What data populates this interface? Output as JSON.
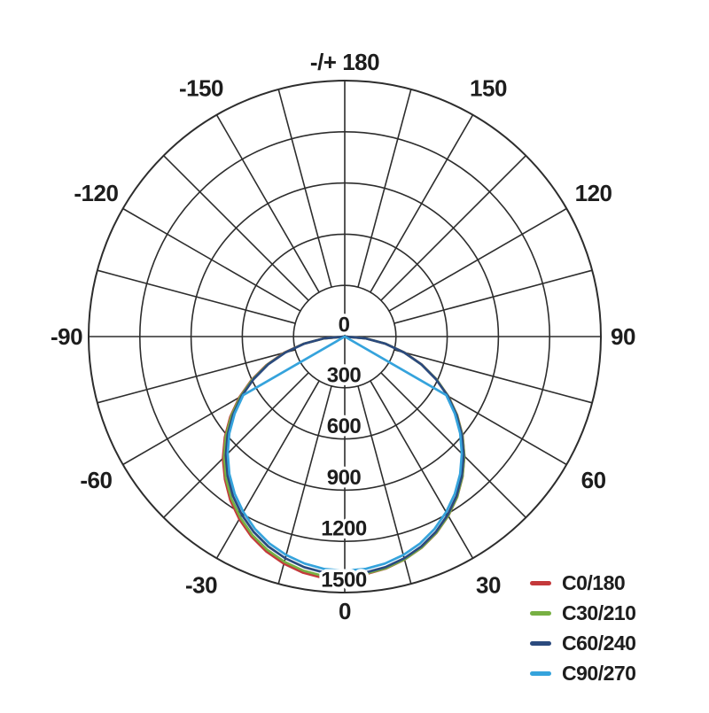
{
  "chart_data": {
    "type": "line",
    "subtype": "polar-photometric-luminous-intensity",
    "title": "",
    "radial_axis": {
      "min": 0,
      "max": 1500,
      "tick_step": 300,
      "tick_labels": [
        "0",
        "300",
        "600",
        "900",
        "1200",
        "1500"
      ],
      "grid": true
    },
    "angular_axis": {
      "grid_step_deg": 15,
      "label_step_deg": 30,
      "zero_direction": "down",
      "labels": [
        {
          "angle": 180,
          "text": "-/+ 180"
        },
        {
          "angle": 150,
          "text": "150"
        },
        {
          "angle": 120,
          "text": "120"
        },
        {
          "angle": 90,
          "text": "90"
        },
        {
          "angle": 60,
          "text": "60"
        },
        {
          "angle": 30,
          "text": "30"
        },
        {
          "angle": 0,
          "text": "0"
        },
        {
          "angle": -30,
          "text": "-30"
        },
        {
          "angle": -60,
          "text": "-60"
        },
        {
          "angle": -90,
          "text": "-90"
        },
        {
          "angle": -120,
          "text": "-120"
        },
        {
          "angle": -150,
          "text": "-150"
        }
      ]
    },
    "colors": {
      "grid": "#2d2d2d",
      "text": "#1d1d1d"
    },
    "legend": {
      "position": "bottom-right"
    },
    "series": [
      {
        "name": "C0/180",
        "color": "#c4393b",
        "points": [
          [
            -90,
            0
          ],
          [
            -85,
            124
          ],
          [
            -80,
            247
          ],
          [
            -75,
            369
          ],
          [
            -70,
            488
          ],
          [
            -65,
            603
          ],
          [
            -60,
            713
          ],
          [
            -55,
            818
          ],
          [
            -50,
            917
          ],
          [
            -45,
            1009
          ],
          [
            -40,
            1092
          ],
          [
            -35,
            1169
          ],
          [
            -30,
            1235
          ],
          [
            -25,
            1293
          ],
          [
            -20,
            1341
          ],
          [
            -15,
            1378
          ],
          [
            -10,
            1405
          ],
          [
            -5,
            1421
          ],
          [
            0,
            1410
          ],
          [
            5,
            1398
          ],
          [
            10,
            1381
          ],
          [
            15,
            1353
          ],
          [
            20,
            1317
          ],
          [
            25,
            1270
          ],
          [
            30,
            1213
          ],
          [
            35,
            1148
          ],
          [
            40,
            1073
          ],
          [
            45,
            991
          ],
          [
            50,
            901
          ],
          [
            55,
            804
          ],
          [
            60,
            701
          ],
          [
            65,
            593
          ],
          [
            70,
            480
          ],
          [
            75,
            363
          ],
          [
            80,
            244
          ],
          [
            85,
            122
          ],
          [
            90,
            0
          ]
        ]
      },
      {
        "name": "C30/210",
        "color": "#77b043",
        "points": [
          [
            -90,
            0
          ],
          [
            -85,
            123
          ],
          [
            -80,
            245
          ],
          [
            -75,
            366
          ],
          [
            -70,
            484
          ],
          [
            -65,
            598
          ],
          [
            -60,
            707
          ],
          [
            -55,
            811
          ],
          [
            -50,
            909
          ],
          [
            -45,
            1000
          ],
          [
            -40,
            1083
          ],
          [
            -35,
            1158
          ],
          [
            -30,
            1224
          ],
          [
            -25,
            1282
          ],
          [
            -20,
            1329
          ],
          [
            -15,
            1366
          ],
          [
            -10,
            1393
          ],
          [
            -5,
            1409
          ],
          [
            0,
            1402
          ],
          [
            5,
            1395
          ],
          [
            10,
            1379
          ],
          [
            15,
            1352
          ],
          [
            20,
            1316
          ],
          [
            25,
            1269
          ],
          [
            30,
            1212
          ],
          [
            35,
            1147
          ],
          [
            40,
            1072
          ],
          [
            45,
            990
          ],
          [
            50,
            900
          ],
          [
            55,
            803
          ],
          [
            60,
            700
          ],
          [
            65,
            592
          ],
          [
            70,
            479
          ],
          [
            75,
            362
          ],
          [
            80,
            243
          ],
          [
            85,
            122
          ],
          [
            90,
            0
          ]
        ]
      },
      {
        "name": "C60/240",
        "color": "#2b4a7e",
        "points": [
          [
            -90,
            0
          ],
          [
            -85,
            121
          ],
          [
            -80,
            242
          ],
          [
            -75,
            360
          ],
          [
            -70,
            477
          ],
          [
            -65,
            589
          ],
          [
            -60,
            697
          ],
          [
            -55,
            799
          ],
          [
            -50,
            896
          ],
          [
            -45,
            985
          ],
          [
            -40,
            1067
          ],
          [
            -35,
            1141
          ],
          [
            -30,
            1206
          ],
          [
            -25,
            1263
          ],
          [
            -20,
            1309
          ],
          [
            -15,
            1345
          ],
          [
            -10,
            1372
          ],
          [
            -5,
            1388
          ],
          [
            0,
            1393
          ],
          [
            5,
            1388
          ],
          [
            10,
            1372
          ],
          [
            15,
            1345
          ],
          [
            20,
            1309
          ],
          [
            25,
            1263
          ],
          [
            30,
            1206
          ],
          [
            35,
            1141
          ],
          [
            40,
            1067
          ],
          [
            45,
            985
          ],
          [
            50,
            896
          ],
          [
            55,
            799
          ],
          [
            60,
            697
          ],
          [
            65,
            589
          ],
          [
            70,
            477
          ],
          [
            75,
            360
          ],
          [
            80,
            242
          ],
          [
            85,
            121
          ],
          [
            90,
            0
          ]
        ]
      },
      {
        "name": "C90/270",
        "color": "#35a3dc",
        "points": [
          [
            -90,
            0
          ],
          [
            -60,
            686
          ],
          [
            -55,
            787
          ],
          [
            -50,
            882
          ],
          [
            -45,
            970
          ],
          [
            -40,
            1051
          ],
          [
            -35,
            1124
          ],
          [
            -30,
            1188
          ],
          [
            -25,
            1244
          ],
          [
            -20,
            1290
          ],
          [
            -15,
            1325
          ],
          [
            -10,
            1351
          ],
          [
            -5,
            1367
          ],
          [
            0,
            1372
          ],
          [
            5,
            1367
          ],
          [
            10,
            1351
          ],
          [
            15,
            1325
          ],
          [
            20,
            1290
          ],
          [
            25,
            1244
          ],
          [
            30,
            1188
          ],
          [
            35,
            1124
          ],
          [
            40,
            1051
          ],
          [
            45,
            970
          ],
          [
            50,
            882
          ],
          [
            55,
            787
          ],
          [
            60,
            686
          ],
          [
            90,
            0
          ]
        ]
      }
    ]
  }
}
